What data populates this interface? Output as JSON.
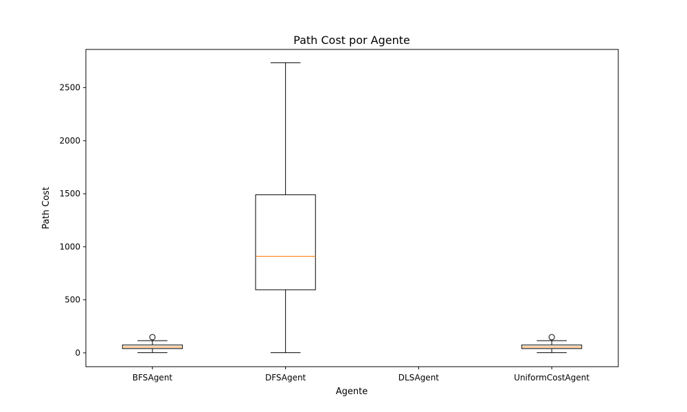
{
  "chart_data": {
    "type": "box",
    "title": "Path Cost por Agente",
    "xlabel": "Agente",
    "ylabel": "Path Cost",
    "ylim": [
      -130,
      2860
    ],
    "yticks": [
      0,
      500,
      1000,
      1500,
      2000,
      2500
    ],
    "categories": [
      "BFSAgent",
      "DFSAgent",
      "DLSAgent",
      "UniformCostAgent"
    ],
    "boxes": [
      {
        "category": "BFSAgent",
        "whisker_low": 2,
        "q1": 40,
        "median": 55,
        "q3": 75,
        "whisker_high": 115,
        "outliers": [
          148
        ]
      },
      {
        "category": "DFSAgent",
        "whisker_low": 2,
        "q1": 595,
        "median": 910,
        "q3": 1490,
        "whisker_high": 2735,
        "outliers": []
      },
      {
        "category": "DLSAgent",
        "empty": true
      },
      {
        "category": "UniformCostAgent",
        "whisker_low": 2,
        "q1": 40,
        "median": 55,
        "q3": 75,
        "whisker_high": 115,
        "outliers": [
          148
        ]
      }
    ],
    "grid": false,
    "colors": {
      "box": "#000000",
      "median": "#ff7f0e",
      "outlier": "#000000"
    }
  }
}
